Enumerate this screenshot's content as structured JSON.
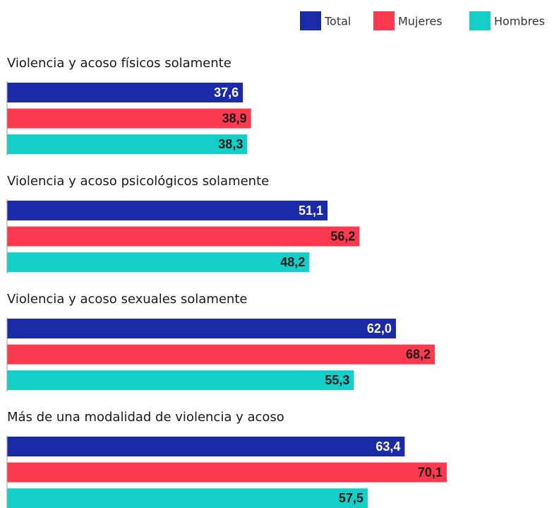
{
  "chart_data": {
    "type": "barh",
    "categories": [
      "Violencia y acoso físicos solamente",
      "Violencia y acoso psicológicos solamente",
      "Violencia y acoso sexuales solamente",
      "Más de una modalidad de violencia y acoso"
    ],
    "series": [
      {
        "name": "Total",
        "color": "#1b2aa6",
        "label_color": "#ffffff",
        "values": [
          37.6,
          51.1,
          62.0,
          63.4
        ],
        "value_labels": [
          "37,6",
          "51,1",
          "62,0",
          "63,4"
        ]
      },
      {
        "name": "Mujeres",
        "color": "#fc3a4f",
        "label_color": "#1a1a1a",
        "values": [
          38.9,
          56.2,
          68.2,
          70.1
        ],
        "value_labels": [
          "38,9",
          "56,2",
          "68,2",
          "70,1"
        ]
      },
      {
        "name": "Hombres",
        "color": "#13cfc8",
        "label_color": "#1a1a1a",
        "values": [
          38.3,
          48.2,
          55.3,
          57.5
        ],
        "value_labels": [
          "38,3",
          "48,2",
          "55,3",
          "57,5"
        ]
      }
    ],
    "xlim": [
      0,
      88
    ],
    "legend": "top-right"
  }
}
